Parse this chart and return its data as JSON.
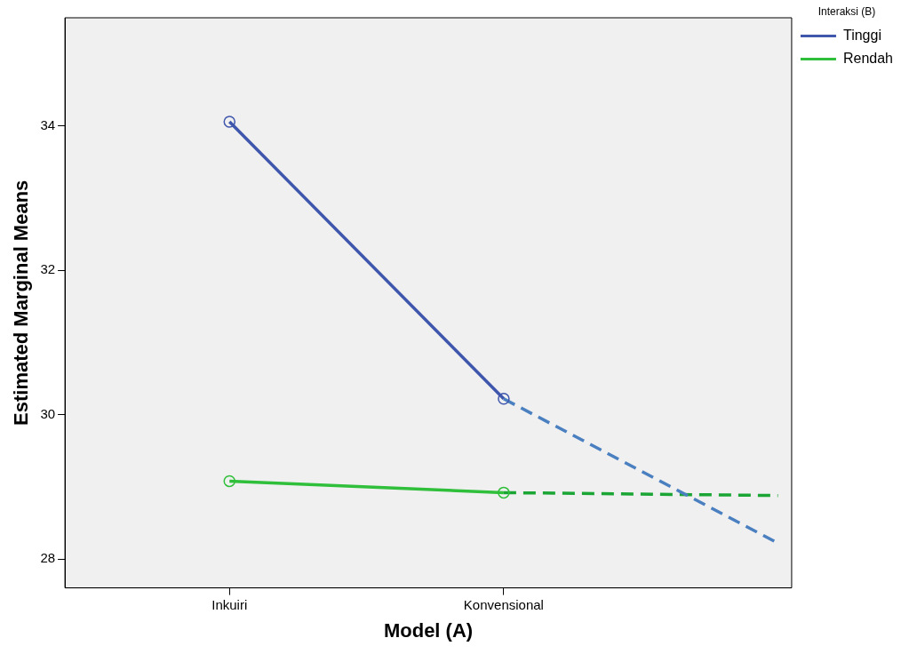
{
  "chart_data": {
    "type": "line",
    "xlabel": "Model (A)",
    "ylabel": "Estimated Marginal Means",
    "legend_title": "Interaksi (B)",
    "legend": "top right",
    "grid": false,
    "marker": "circle",
    "categories": [
      "Inkuiri",
      "Konvensional",
      null
    ],
    "ylim": [
      27.6,
      35.5
    ],
    "yticks": [
      28,
      30,
      32,
      34
    ],
    "series": [
      {
        "name": "Tinggi",
        "color": "#3f56ad",
        "values": [
          34.06,
          30.22,
          null
        ]
      },
      {
        "name": "Rendah",
        "color": "#2fbf3a",
        "values": [
          29.08,
          28.92,
          null
        ]
      },
      {
        "color": "#4a7fc0",
        "values": [
          null,
          30.22,
          28.22
        ],
        "line_style": "dashed",
        "marker": "none"
      },
      {
        "color": "#1aa535",
        "values": [
          null,
          28.92,
          28.88
        ],
        "line_style": "dashed",
        "marker": "none"
      }
    ]
  }
}
